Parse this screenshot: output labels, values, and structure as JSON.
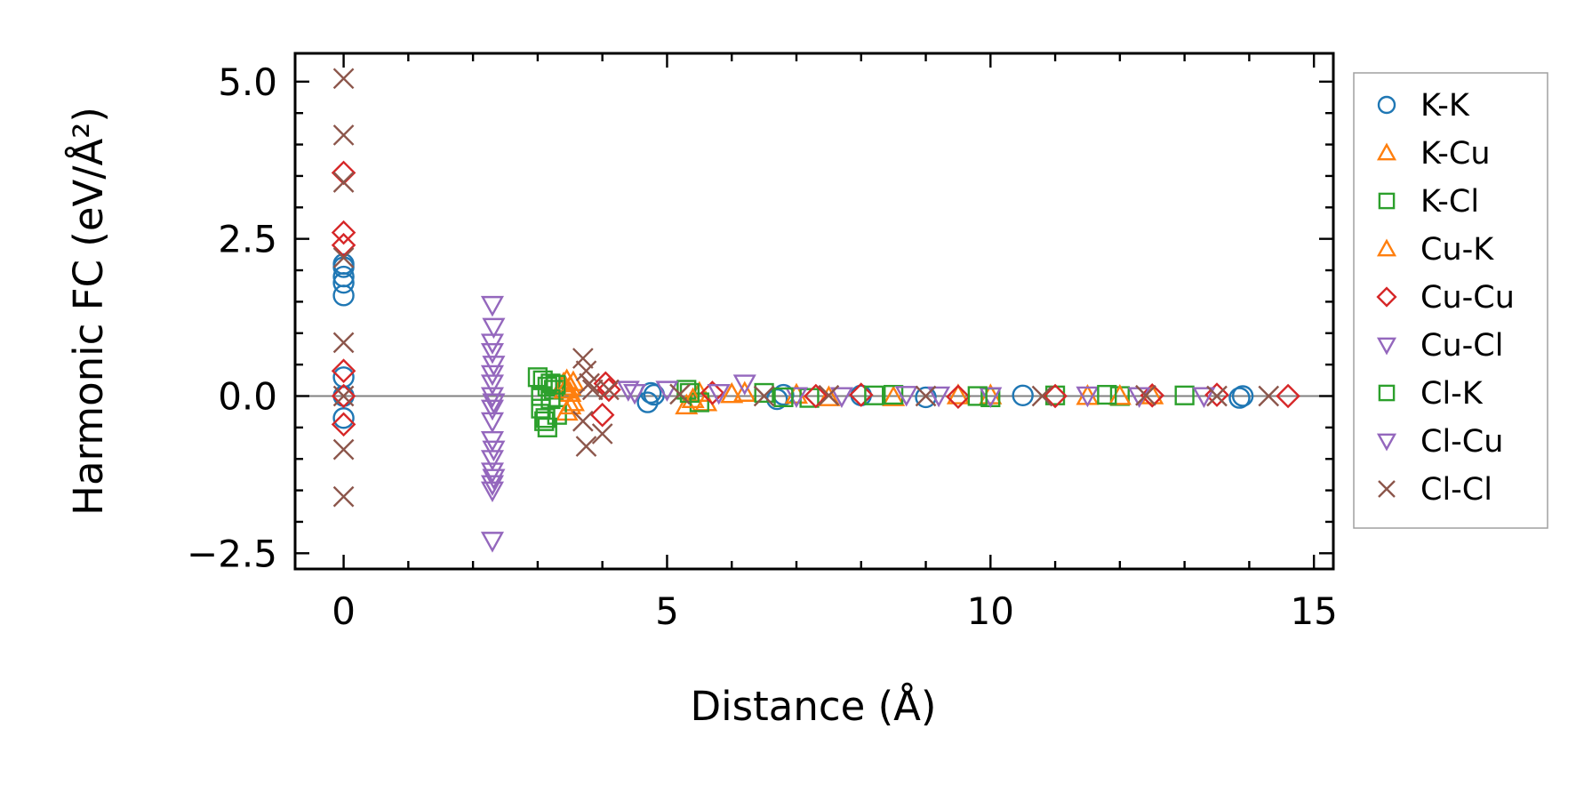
{
  "chart_data": {
    "type": "scatter",
    "xlabel": "Distance (Å)",
    "ylabel": "Harmonic FC (eV/Å²)",
    "xlim": [
      -0.75,
      15.3
    ],
    "ylim": [
      -2.75,
      5.45
    ],
    "x_ticks": [
      0,
      5,
      10,
      15
    ],
    "y_ticks": [
      -2.5,
      0.0,
      2.5,
      5.0
    ],
    "x_tick_labels": [
      "0",
      "5",
      "10",
      "15"
    ],
    "y_tick_labels": [
      "−2.5",
      "0.0",
      "2.5",
      "5.0"
    ],
    "zero_line": 0,
    "grid": false,
    "legend_position": "outside-right",
    "series": [
      {
        "name": "K-K",
        "marker": "circle",
        "color": "#1f77b4",
        "points": [
          [
            0,
            0
          ],
          [
            0,
            2.05
          ],
          [
            0,
            1.9
          ],
          [
            0,
            1.8
          ],
          [
            0,
            1.6
          ],
          [
            0,
            0.3
          ],
          [
            0,
            -0.35
          ],
          [
            0,
            2.1
          ],
          [
            4.7,
            -0.1
          ],
          [
            4.75,
            0.05
          ],
          [
            4.8,
            0.02
          ],
          [
            6.7,
            -0.05
          ],
          [
            6.8,
            0.02
          ],
          [
            8.0,
            0.01
          ],
          [
            9.0,
            -0.02
          ],
          [
            10.5,
            0.01
          ],
          [
            13.85,
            -0.03
          ],
          [
            13.9,
            0.0
          ]
        ]
      },
      {
        "name": "K-Cu",
        "marker": "triangle-up",
        "color": "#ff7f0e",
        "points": [
          [
            3.4,
            0.2
          ],
          [
            3.45,
            -0.25
          ],
          [
            3.5,
            0.15
          ],
          [
            3.55,
            -0.1
          ],
          [
            3.5,
            0.05
          ],
          [
            3.45,
            0.25
          ],
          [
            5.3,
            -0.15
          ],
          [
            5.5,
            0.05
          ],
          [
            5.6,
            -0.1
          ],
          [
            6.2,
            0.05
          ],
          [
            7.0,
            0.02
          ],
          [
            8.5,
            -0.02
          ],
          [
            10.0,
            0.01
          ],
          [
            11.5,
            0.0
          ],
          [
            12.5,
            0.01
          ]
        ]
      },
      {
        "name": "K-Cl",
        "marker": "square",
        "color": "#2ca02c",
        "points": [
          [
            3.0,
            0.3
          ],
          [
            3.05,
            -0.2
          ],
          [
            3.1,
            -0.4
          ],
          [
            3.15,
            -0.5
          ],
          [
            3.2,
            0.2
          ],
          [
            3.25,
            0.1
          ],
          [
            3.3,
            -0.3
          ],
          [
            3.05,
            0.0
          ],
          [
            3.15,
            0.15
          ],
          [
            5.3,
            0.1
          ],
          [
            5.5,
            -0.1
          ],
          [
            6.5,
            0.05
          ],
          [
            7.2,
            -0.03
          ],
          [
            8.5,
            0.02
          ],
          [
            10.0,
            -0.02
          ],
          [
            11.0,
            0.01
          ],
          [
            12.0,
            0.0
          ],
          [
            13.0,
            0.01
          ]
        ]
      },
      {
        "name": "Cu-K",
        "marker": "triangle-up",
        "color": "#ff7f0e",
        "points": [
          [
            3.42,
            0.1
          ],
          [
            3.5,
            -0.15
          ],
          [
            3.55,
            0.22
          ],
          [
            5.4,
            -0.05
          ],
          [
            6.0,
            0.03
          ],
          [
            7.5,
            -0.02
          ],
          [
            9.5,
            0.01
          ],
          [
            12.0,
            0.0
          ]
        ]
      },
      {
        "name": "Cu-Cu",
        "marker": "diamond",
        "color": "#d62728",
        "points": [
          [
            0,
            3.55
          ],
          [
            0,
            2.6
          ],
          [
            0,
            2.4
          ],
          [
            0,
            0.4
          ],
          [
            0,
            -0.45
          ],
          [
            0,
            0.0
          ],
          [
            4.0,
            -0.3
          ],
          [
            4.05,
            0.2
          ],
          [
            4.1,
            0.1
          ],
          [
            5.7,
            0.05
          ],
          [
            7.3,
            0.0
          ],
          [
            8.0,
            0.02
          ],
          [
            9.5,
            -0.01
          ],
          [
            11.0,
            0.0
          ],
          [
            12.5,
            0.01
          ],
          [
            13.5,
            0.02
          ],
          [
            14.6,
            0.0
          ]
        ]
      },
      {
        "name": "Cu-Cl",
        "marker": "triangle-down",
        "color": "#9467bd",
        "points": [
          [
            2.3,
            1.45
          ],
          [
            2.3,
            0.85
          ],
          [
            2.3,
            0.7
          ],
          [
            2.3,
            0.35
          ],
          [
            2.3,
            0.2
          ],
          [
            2.3,
            0.0
          ],
          [
            2.3,
            -0.2
          ],
          [
            2.3,
            -0.4
          ],
          [
            2.3,
            -0.7
          ],
          [
            2.3,
            -1.0
          ],
          [
            2.3,
            -1.2
          ],
          [
            2.3,
            -1.4
          ],
          [
            2.3,
            -1.5
          ],
          [
            2.3,
            -2.3
          ],
          [
            4.5,
            0.05
          ],
          [
            5.0,
            0.1
          ],
          [
            6.2,
            0.2
          ],
          [
            7.0,
            0.0
          ],
          [
            8.7,
            0.02
          ],
          [
            10.0,
            0.0
          ],
          [
            11.5,
            0.01
          ],
          [
            13.3,
            0.0
          ]
        ]
      },
      {
        "name": "Cl-K",
        "marker": "square",
        "color": "#2ca02c",
        "points": [
          [
            3.08,
            0.25
          ],
          [
            3.12,
            -0.35
          ],
          [
            3.2,
            -0.05
          ],
          [
            3.28,
            0.18
          ],
          [
            5.35,
            0.05
          ],
          [
            6.8,
            -0.02
          ],
          [
            8.2,
            0.01
          ],
          [
            9.8,
            0.0
          ],
          [
            11.8,
            0.02
          ]
        ]
      },
      {
        "name": "Cl-Cu",
        "marker": "triangle-down",
        "color": "#9467bd",
        "points": [
          [
            2.32,
            1.1
          ],
          [
            2.32,
            0.5
          ],
          [
            2.32,
            -0.1
          ],
          [
            2.32,
            -0.85
          ],
          [
            2.32,
            -1.3
          ],
          [
            4.4,
            0.1
          ],
          [
            5.8,
            0.05
          ],
          [
            7.7,
            0.0
          ],
          [
            9.2,
            0.01
          ],
          [
            12.3,
            0.0
          ]
        ]
      },
      {
        "name": "Cl-Cl",
        "marker": "x",
        "color": "#8c564b",
        "points": [
          [
            0,
            5.05
          ],
          [
            0,
            4.15
          ],
          [
            0,
            3.4
          ],
          [
            0,
            2.2
          ],
          [
            0,
            0.85
          ],
          [
            0,
            0.0
          ],
          [
            0,
            -0.85
          ],
          [
            0,
            -1.6
          ],
          [
            3.7,
            0.6
          ],
          [
            3.75,
            0.4
          ],
          [
            3.8,
            0.2
          ],
          [
            3.7,
            -0.4
          ],
          [
            3.75,
            -0.8
          ],
          [
            3.85,
            0.1
          ],
          [
            4.0,
            -0.6
          ],
          [
            4.1,
            0.1
          ],
          [
            5.2,
            0.03
          ],
          [
            6.5,
            0.0
          ],
          [
            7.5,
            0.01
          ],
          [
            9.0,
            0.0
          ],
          [
            10.8,
            0.0
          ],
          [
            12.4,
            0.01
          ],
          [
            13.5,
            0.0
          ],
          [
            14.3,
            0.0
          ]
        ]
      }
    ]
  }
}
